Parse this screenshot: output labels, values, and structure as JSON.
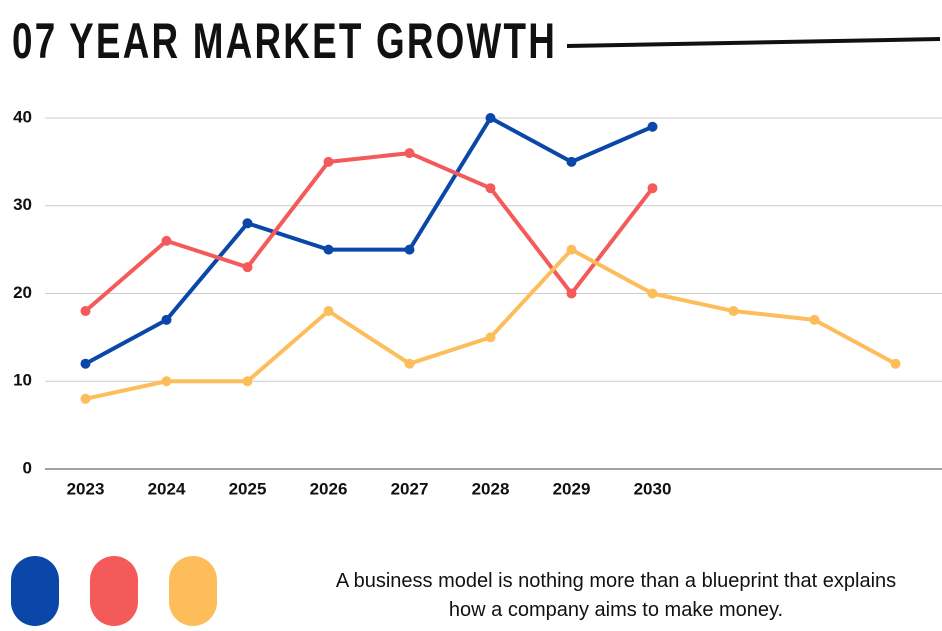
{
  "chart_data": {
    "type": "line",
    "title": "07 YEAR MARKET GROWTH",
    "categories": [
      "2023",
      "2024",
      "2025",
      "2026",
      "2027",
      "2028",
      "2029",
      "2030",
      null,
      null,
      null
    ],
    "series": [
      {
        "color": "#0a47a8",
        "values": [
          12,
          17,
          28,
          25,
          25,
          40,
          35,
          39,
          null,
          null,
          null
        ]
      },
      {
        "color": "#f55a5a",
        "values": [
          18,
          26,
          23,
          35,
          36,
          32,
          20,
          32,
          null,
          null,
          null
        ]
      },
      {
        "color": "#fdbd5a",
        "values": [
          8,
          10,
          10,
          18,
          12,
          15,
          25,
          20,
          18,
          17,
          12
        ]
      }
    ],
    "ylim": [
      0,
      40
    ],
    "yticks": [
      0,
      10,
      20,
      30,
      40
    ],
    "grid": true,
    "caption": "A business model is nothing more than a blueprint that explains how a company aims to make money."
  }
}
